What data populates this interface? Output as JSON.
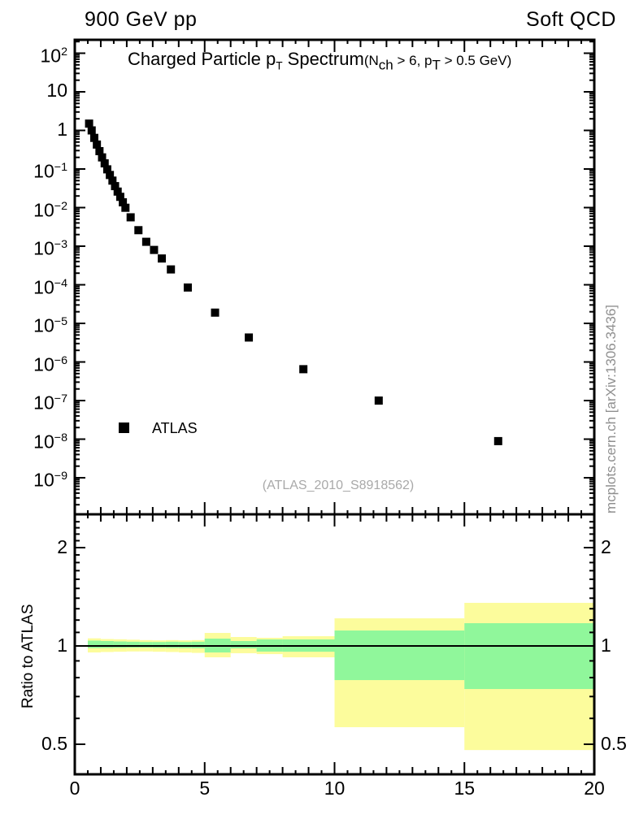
{
  "header": {
    "left": "900 GeV pp",
    "right": "Soft QCD"
  },
  "title": {
    "main1": "Charged Particle p",
    "sub1": "T",
    "main2": " Spectrum",
    "paren1": "(N",
    "sub2": "ch",
    "paren2": " > 6, p",
    "sub3": "T",
    "paren3": " > 0.5 GeV)"
  },
  "legend": {
    "label": "ATLAS",
    "marker": "filled-square",
    "marker_color": "#000000"
  },
  "watermark": "(ATLAS_2010_S8918562)",
  "side_note": "mcplots.cern.ch [arXiv:1306.3436]",
  "colors": {
    "band_outer": "#FCFC9C",
    "band_inner": "#90F79B",
    "marker": "#000000",
    "frame": "#000000",
    "gray_text": "#a9a9a9"
  },
  "chart_data": [
    {
      "type": "scatter",
      "title": "Charged Particle pT Spectrum (Nch > 6, pT > 0.5 GeV)",
      "x_range": [
        0,
        20
      ],
      "x_ticks": [
        0,
        5,
        10,
        15,
        20
      ],
      "y_scale": "log",
      "y_range": [
        1.1e-10,
        222
      ],
      "y_tick_exponents": [
        2,
        1,
        0,
        -1,
        -2,
        -3,
        -4,
        -5,
        -6,
        -7,
        -8,
        -9
      ],
      "grid": false,
      "legend_position": "left-middle",
      "series": [
        {
          "name": "ATLAS",
          "marker": "filled-square",
          "color": "#000000",
          "points": [
            [
              0.55,
              1.5
            ],
            [
              0.65,
              1.0
            ],
            [
              0.75,
              0.64
            ],
            [
              0.85,
              0.43
            ],
            [
              0.95,
              0.29
            ],
            [
              1.05,
              0.2
            ],
            [
              1.15,
              0.14
            ],
            [
              1.25,
              0.098
            ],
            [
              1.35,
              0.07
            ],
            [
              1.45,
              0.05
            ],
            [
              1.55,
              0.036
            ],
            [
              1.65,
              0.026
            ],
            [
              1.75,
              0.019
            ],
            [
              1.85,
              0.0137
            ],
            [
              1.95,
              0.0099
            ],
            [
              2.15,
              0.0056
            ],
            [
              2.45,
              0.0026
            ],
            [
              2.75,
              0.0013
            ],
            [
              3.05,
              0.0008
            ],
            [
              3.35,
              0.00048
            ],
            [
              3.7,
              0.00025
            ],
            [
              4.35,
              8.5e-05
            ],
            [
              5.4,
              1.9e-05
            ],
            [
              6.7,
              4.3e-06
            ],
            [
              8.8,
              6.5e-07
            ],
            [
              11.7,
              1e-07
            ],
            [
              16.3,
              8.9e-09
            ]
          ]
        }
      ]
    },
    {
      "type": "ratio-bands",
      "ylabel": "Ratio to ATLAS",
      "x_range": [
        0,
        20
      ],
      "x_ticks": [
        0,
        5,
        10,
        15,
        20
      ],
      "y_scale": "log",
      "y_range": [
        0.405,
        2.53
      ],
      "y_ticks": [
        0.5,
        1,
        2
      ],
      "reference_line": 1.0,
      "band_colors": {
        "outer": "#FCFC9C",
        "inner": "#90F79B"
      },
      "bins": [
        {
          "x": [
            0.5,
            1.0
          ],
          "outer": [
            0.955,
            1.055
          ],
          "inner": [
            0.985,
            1.038
          ]
        },
        {
          "x": [
            1.0,
            1.5
          ],
          "outer": [
            0.958,
            1.05
          ],
          "inner": [
            0.986,
            1.035
          ]
        },
        {
          "x": [
            1.5,
            2.0
          ],
          "outer": [
            0.96,
            1.048
          ],
          "inner": [
            0.987,
            1.032
          ]
        },
        {
          "x": [
            2.0,
            2.5
          ],
          "outer": [
            0.962,
            1.045
          ],
          "inner": [
            0.988,
            1.03
          ]
        },
        {
          "x": [
            2.5,
            3.0
          ],
          "outer": [
            0.962,
            1.042
          ],
          "inner": [
            0.988,
            1.028
          ]
        },
        {
          "x": [
            3.0,
            3.5
          ],
          "outer": [
            0.96,
            1.04
          ],
          "inner": [
            0.987,
            1.028
          ]
        },
        {
          "x": [
            3.5,
            4.0
          ],
          "outer": [
            0.958,
            1.042
          ],
          "inner": [
            0.986,
            1.03
          ]
        },
        {
          "x": [
            4.0,
            4.5
          ],
          "outer": [
            0.955,
            1.04
          ],
          "inner": [
            0.985,
            1.028
          ]
        },
        {
          "x": [
            4.5,
            5.0
          ],
          "outer": [
            0.952,
            1.042
          ],
          "inner": [
            0.984,
            1.03
          ]
        },
        {
          "x": [
            5.0,
            6.0
          ],
          "outer": [
            0.923,
            1.096
          ],
          "inner": [
            0.955,
            1.053
          ]
        },
        {
          "x": [
            6.0,
            7.0
          ],
          "outer": [
            0.95,
            1.065
          ],
          "inner": [
            0.983,
            1.035
          ]
        },
        {
          "x": [
            7.0,
            8.0
          ],
          "outer": [
            0.944,
            1.059
          ],
          "inner": [
            0.961,
            1.047
          ]
        },
        {
          "x": [
            8.0,
            10.0
          ],
          "outer": [
            0.923,
            1.071
          ],
          "inner": [
            0.96,
            1.047
          ]
        },
        {
          "x": [
            10.0,
            15.0
          ],
          "outer": [
            0.564,
            1.215
          ],
          "inner": [
            0.786,
            1.115
          ]
        },
        {
          "x": [
            15.0,
            20.0
          ],
          "outer": [
            0.48,
            1.355
          ],
          "inner": [
            0.738,
            1.174
          ]
        }
      ]
    }
  ]
}
